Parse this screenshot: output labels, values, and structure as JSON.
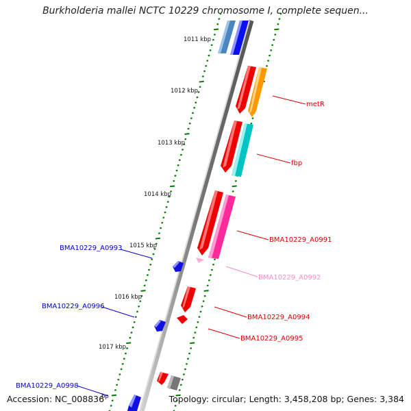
{
  "title": "Burkholderia mallei NCTC 10229 chromosome I, complete sequen...",
  "accession": "Accession: NC_008836",
  "topology": "Topology: circular; Length: 3,458,208 bp; Genes: 3,384",
  "scale_labels": [
    "1011 kbp",
    "1012 kbp",
    "1013 kbp",
    "1014 kbp",
    "1015 kbp",
    "1016 kbp",
    "1017 kbp"
  ],
  "partial_scale_label": "bp",
  "genes": [
    {
      "id": "g-top-a",
      "label": "",
      "color": "#4a86c0",
      "strand": "minus"
    },
    {
      "id": "g-top-b",
      "label": "",
      "color": "#0a10ee",
      "strand": "minus"
    },
    {
      "id": "g-red1",
      "label": "",
      "color": "#ee0000",
      "strand": "minus"
    },
    {
      "id": "metR",
      "label": "metR",
      "color": "#ff9900",
      "strand": "minus"
    },
    {
      "id": "g-red2",
      "label": "",
      "color": "#ee0000",
      "strand": "minus"
    },
    {
      "id": "fbp",
      "label": "fbp",
      "color": "#00c4c4",
      "strand": "minus"
    },
    {
      "id": "BMA10229_A0991",
      "label": "BMA10229_A0991",
      "color": "#ee0000",
      "strand": "minus"
    },
    {
      "id": "g-pink",
      "label": "",
      "color": "#ff2b9c",
      "strand": "minus"
    },
    {
      "id": "BMA10229_A0992",
      "label": "BMA10229_A0992",
      "color": "#ffaadd",
      "strand": "minus"
    },
    {
      "id": "BMA10229_A0993",
      "label": "BMA10229_A0993",
      "color": "#1010e0",
      "strand": "plus"
    },
    {
      "id": "BMA10229_A0994",
      "label": "BMA10229_A0994",
      "color": "#ee0000",
      "strand": "minus"
    },
    {
      "id": "BMA10229_A0995",
      "label": "BMA10229_A0995",
      "color": "#ee0000",
      "strand": "minus"
    },
    {
      "id": "BMA10229_A0996",
      "label": "BMA10229_A0996",
      "color": "#1010e0",
      "strand": "plus"
    },
    {
      "id": "g-red-bottom",
      "label": "",
      "color": "#ee0000",
      "strand": "minus"
    },
    {
      "id": "g-gray",
      "label": "",
      "color": "#777777",
      "strand": "minus"
    },
    {
      "id": "BMA10229_A0998",
      "label": "BMA10229_A0998",
      "color": "#1010e0",
      "strand": "plus"
    }
  ],
  "colors": {
    "label_red": "#dd0000",
    "label_blue": "#0000cc",
    "label_pink": "#ff88cc",
    "tick_green": "#007700",
    "backbone": "#888888"
  }
}
